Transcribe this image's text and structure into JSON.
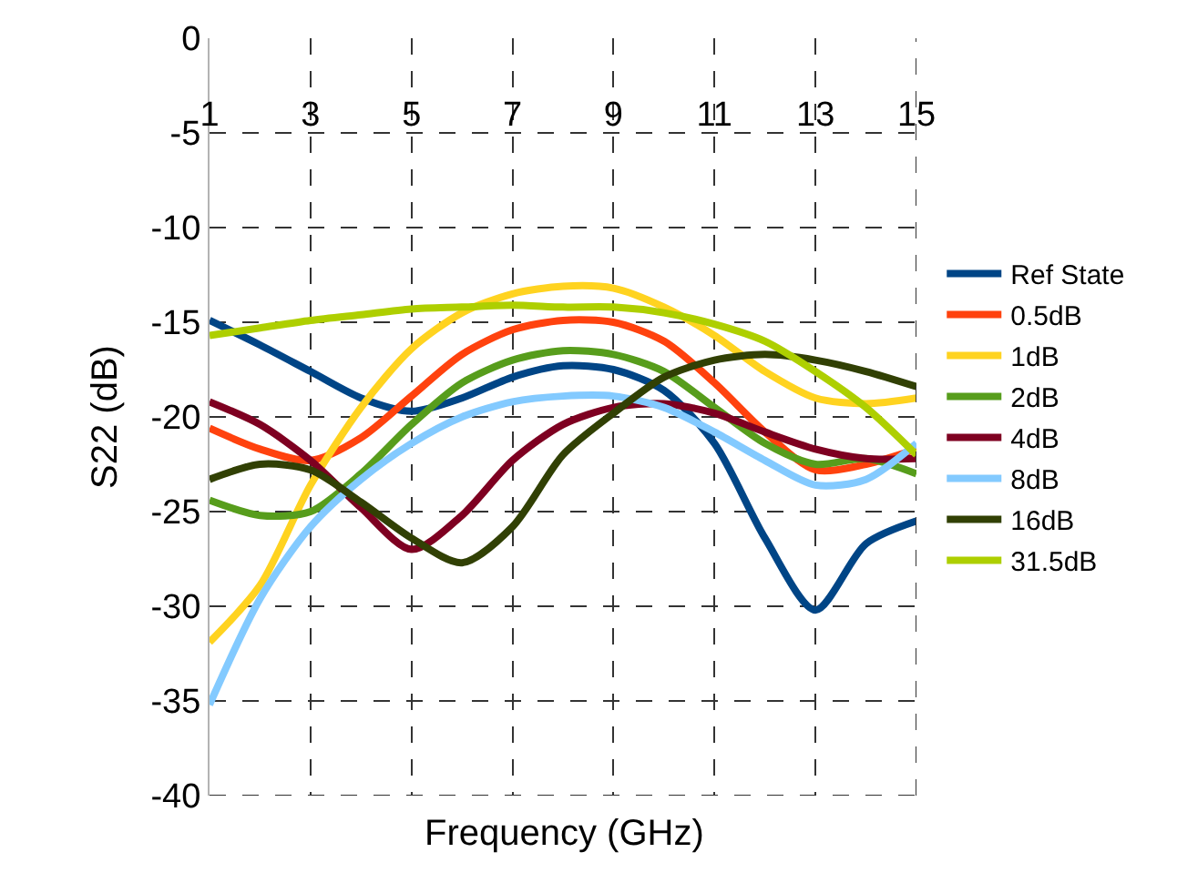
{
  "chart_data": {
    "type": "line",
    "xlabel": "Frequency (GHz)",
    "ylabel": "S22 (dB)",
    "x": [
      1,
      2,
      3,
      4,
      5,
      6,
      7,
      8,
      9,
      10,
      11,
      12,
      13,
      14,
      15
    ],
    "xlim": [
      1,
      15
    ],
    "xticks": [
      1,
      3,
      5,
      7,
      9,
      11,
      13,
      15
    ],
    "ylim": [
      -40,
      0
    ],
    "yticks": [
      -40,
      -35,
      -30,
      -25,
      -20,
      -15,
      -10,
      -5,
      0
    ],
    "grid": true,
    "legend": "right",
    "marker": "none",
    "line_style": "solid",
    "series": [
      {
        "name": "Ref State",
        "color": "#004586",
        "values": [
          -14.9,
          -16.2,
          -17.6,
          -19.0,
          -19.7,
          -19.0,
          -17.9,
          -17.3,
          -17.5,
          -18.6,
          -21.4,
          -26.4,
          -30.2,
          -26.7,
          -25.5
        ]
      },
      {
        "name": "0.5dB",
        "color": "#ff420e",
        "values": [
          -20.6,
          -21.7,
          -22.3,
          -21.1,
          -18.9,
          -16.7,
          -15.4,
          -14.9,
          -15.0,
          -16.0,
          -18.2,
          -20.8,
          -22.8,
          -22.5,
          -21.7
        ]
      },
      {
        "name": "1dB",
        "color": "#ffd320",
        "values": [
          -31.9,
          -28.9,
          -23.6,
          -19.5,
          -16.4,
          -14.5,
          -13.5,
          -13.1,
          -13.2,
          -14.2,
          -15.7,
          -17.6,
          -19.0,
          -19.3,
          -19.0
        ]
      },
      {
        "name": "2dB",
        "color": "#579d1c",
        "values": [
          -24.4,
          -25.2,
          -25.0,
          -23.0,
          -20.4,
          -18.2,
          -17.0,
          -16.5,
          -16.7,
          -17.6,
          -19.5,
          -21.4,
          -22.5,
          -22.2,
          -23.0
        ]
      },
      {
        "name": "4dB",
        "color": "#7e0021",
        "values": [
          -19.2,
          -20.4,
          -22.3,
          -24.8,
          -27.0,
          -25.2,
          -22.3,
          -20.4,
          -19.5,
          -19.3,
          -19.8,
          -20.8,
          -21.7,
          -22.2,
          -22.2
        ]
      },
      {
        "name": "8dB",
        "color": "#83caff",
        "values": [
          -35.2,
          -29.6,
          -25.8,
          -23.3,
          -21.4,
          -20.0,
          -19.2,
          -18.9,
          -18.9,
          -19.5,
          -20.8,
          -22.3,
          -23.6,
          -23.3,
          -21.4
        ]
      },
      {
        "name": "16dB",
        "color": "#314004",
        "values": [
          -23.3,
          -22.5,
          -22.8,
          -24.5,
          -26.4,
          -27.7,
          -25.8,
          -22.0,
          -19.8,
          -17.9,
          -17.0,
          -16.7,
          -17.0,
          -17.6,
          -18.4
        ]
      },
      {
        "name": "31.5dB",
        "color": "#aecf00",
        "values": [
          -15.7,
          -15.3,
          -14.9,
          -14.6,
          -14.3,
          -14.2,
          -14.1,
          -14.2,
          -14.2,
          -14.5,
          -15.1,
          -16.0,
          -17.6,
          -19.5,
          -22.0
        ]
      }
    ]
  }
}
